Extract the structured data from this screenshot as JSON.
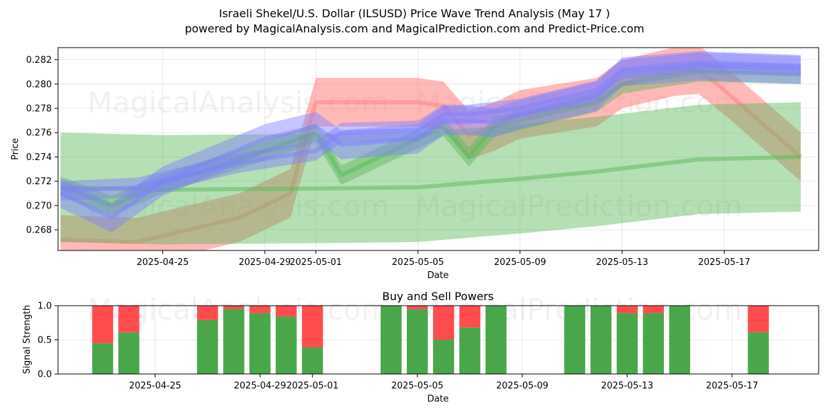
{
  "title_line1": "Israeli Shekel/U.S. Dollar (ILSUSD) Price Wave Trend Analysis (May 17 )",
  "title_line2": "powered by MagicalAnalysis.com and MagicalPrediction.com and Predict-Price.com",
  "watermarks": [
    "MagicalAnalysis.com",
    "MagicalPrediction.com"
  ],
  "colors": {
    "buy": "#4aa64a",
    "sell": "#ff4c4c",
    "red_wave": "#ff7f7f",
    "green_wave": "#5cb85c",
    "blue_wave": "#7f7fff"
  },
  "chart_data": [
    {
      "type": "area",
      "xlabel": "Date",
      "ylabel": "Price",
      "x_ticks": [
        "2025-04-25",
        "2025-04-29",
        "2025-05-01",
        "2025-05-05",
        "2025-05-09",
        "2025-05-13",
        "2025-05-17"
      ],
      "y_ticks": [
        "0.268",
        "0.270",
        "0.272",
        "0.274",
        "0.276",
        "0.278",
        "0.280",
        "0.282"
      ],
      "xlim": [
        "2025-04-21",
        "2025-05-20"
      ],
      "ylim": [
        0.2663,
        0.283
      ],
      "grid": true,
      "series": [
        {
          "color": "red",
          "x": [
            "2025-04-21",
            "2025-04-24",
            "2025-04-28",
            "2025-04-30",
            "2025-05-01",
            "2025-05-02",
            "2025-05-05",
            "2025-05-06",
            "2025-05-07",
            "2025-05-08",
            "2025-05-09",
            "2025-05-12",
            "2025-05-13",
            "2025-05-15",
            "2025-05-16",
            "2025-05-17",
            "2025-05-20"
          ],
          "y": [
            0.2672,
            0.267,
            0.269,
            0.271,
            0.2785,
            0.2785,
            0.2785,
            0.2782,
            0.2758,
            0.2765,
            0.2775,
            0.2785,
            0.28,
            0.281,
            0.2812,
            0.2795,
            0.274
          ],
          "band": 0.002
        },
        {
          "color": "green",
          "x": [
            "2025-04-21",
            "2025-04-25",
            "2025-05-01",
            "2025-05-05",
            "2025-05-09",
            "2025-05-12",
            "2025-05-16",
            "2025-05-20"
          ],
          "y": [
            0.2715,
            0.2713,
            0.2714,
            0.2715,
            0.2722,
            0.2728,
            0.2738,
            0.274
          ],
          "band": 0.0045
        },
        {
          "color": "green",
          "x": [
            "2025-04-21",
            "2025-04-23",
            "2025-04-25",
            "2025-04-29",
            "2025-05-01",
            "2025-05-02",
            "2025-05-05",
            "2025-05-06",
            "2025-05-07",
            "2025-05-08",
            "2025-05-09",
            "2025-05-12",
            "2025-05-13",
            "2025-05-16",
            "2025-05-20"
          ],
          "y": [
            0.2716,
            0.27,
            0.2718,
            0.2745,
            0.276,
            0.2725,
            0.2755,
            0.2765,
            0.274,
            0.2765,
            0.277,
            0.2785,
            0.28,
            0.281,
            0.2808
          ],
          "band": 0.0008
        },
        {
          "color": "blue",
          "x": [
            "2025-04-21",
            "2025-04-23",
            "2025-04-25",
            "2025-04-29",
            "2025-05-01",
            "2025-05-02",
            "2025-05-05",
            "2025-05-06",
            "2025-05-07",
            "2025-05-08",
            "2025-05-09",
            "2025-05-12",
            "2025-05-13",
            "2025-05-16",
            "2025-05-20"
          ],
          "y": [
            0.271,
            0.269,
            0.272,
            0.2755,
            0.2765,
            0.275,
            0.2755,
            0.277,
            0.277,
            0.2768,
            0.2775,
            0.279,
            0.281,
            0.2815,
            0.2812
          ],
          "band": 0.0012
        },
        {
          "color": "blue",
          "x": [
            "2025-04-21",
            "2025-04-24",
            "2025-04-28",
            "2025-05-01",
            "2025-05-02",
            "2025-05-05",
            "2025-05-06",
            "2025-05-07",
            "2025-05-09",
            "2025-05-12",
            "2025-05-13",
            "2025-05-16",
            "2025-05-20"
          ],
          "y": [
            0.2712,
            0.2715,
            0.2735,
            0.2745,
            0.276,
            0.2762,
            0.2775,
            0.2775,
            0.278,
            0.2795,
            0.2812,
            0.2818,
            0.2815
          ],
          "band": 0.0008
        }
      ]
    },
    {
      "type": "bar",
      "title": "Buy and Sell Powers",
      "xlabel": "Date",
      "ylabel": "Signal Strength",
      "x_ticks": [
        "2025-04-25",
        "2025-04-29",
        "2025-05-01",
        "2025-05-05",
        "2025-05-09",
        "2025-05-13",
        "2025-05-17"
      ],
      "y_ticks": [
        "0.0",
        "0.5",
        "1.0"
      ],
      "ylim": [
        0,
        1
      ],
      "grid": true,
      "categories": [
        "2025-04-23",
        "2025-04-24",
        "2025-04-27",
        "2025-04-28",
        "2025-04-29",
        "2025-04-30",
        "2025-05-01",
        "2025-05-04",
        "2025-05-05",
        "2025-05-06",
        "2025-05-07",
        "2025-05-08",
        "2025-05-11",
        "2025-05-12",
        "2025-05-13",
        "2025-05-14",
        "2025-05-15",
        "2025-05-18"
      ],
      "series": [
        {
          "name": "buy",
          "values": [
            0.45,
            0.61,
            0.79,
            0.95,
            0.89,
            0.84,
            0.39,
            1.0,
            0.95,
            0.5,
            0.68,
            1.0,
            1.0,
            1.0,
            0.89,
            0.89,
            1.0,
            0.61
          ]
        },
        {
          "name": "sell",
          "values": [
            0.55,
            0.39,
            0.21,
            0.05,
            0.11,
            0.16,
            0.61,
            0.0,
            0.05,
            0.5,
            0.32,
            0.0,
            0.0,
            0.0,
            0.11,
            0.11,
            0.0,
            0.39
          ]
        }
      ]
    }
  ]
}
